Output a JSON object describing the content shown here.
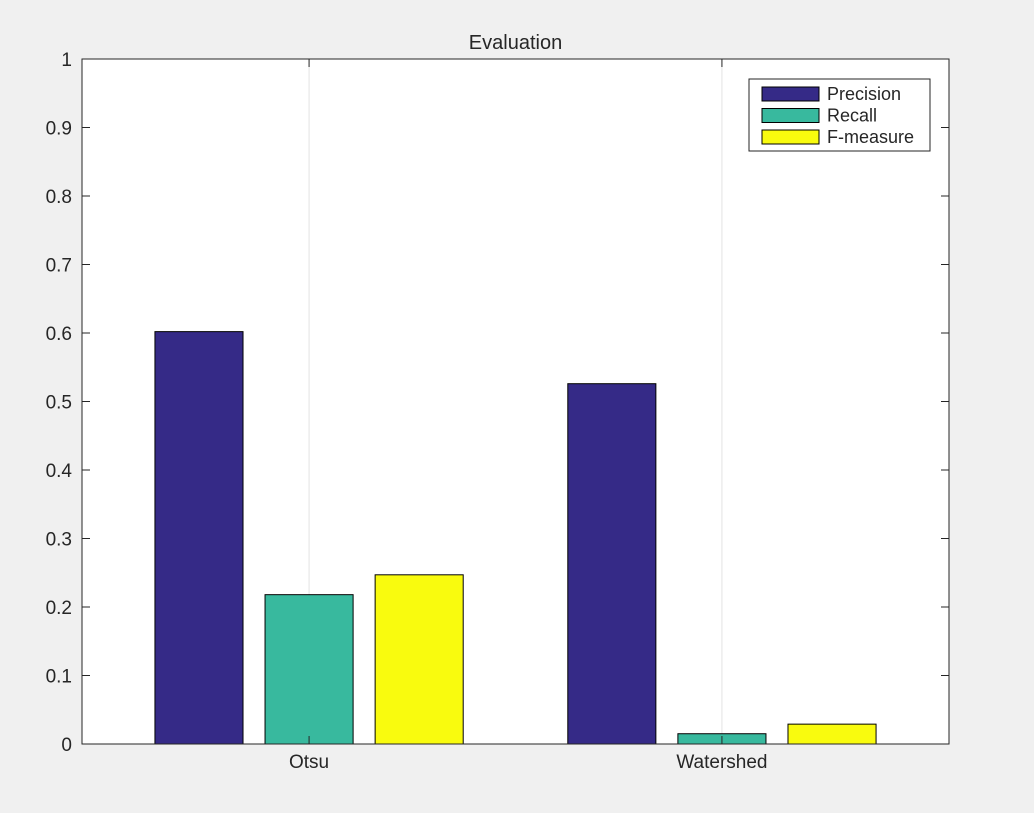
{
  "chart_data": {
    "type": "bar",
    "title": "Evaluation",
    "xlabel": "",
    "ylabel": "",
    "categories": [
      "Otsu",
      "Watershed"
    ],
    "series": [
      {
        "name": "Precision",
        "values": [
          0.602,
          0.526
        ],
        "color": "#352a87"
      },
      {
        "name": "Recall",
        "values": [
          0.218,
          0.015
        ],
        "color": "#38b99e"
      },
      {
        "name": "F-measure",
        "values": [
          0.247,
          0.029
        ],
        "color": "#f9fb0e"
      }
    ],
    "ylim": [
      0,
      1
    ],
    "yticks": [
      "0",
      "0.1",
      "0.2",
      "0.3",
      "0.4",
      "0.5",
      "0.6",
      "0.7",
      "0.8",
      "0.9",
      "1"
    ],
    "grid": "x-only",
    "legend_position": "top-right",
    "background": "#f0f0f0",
    "axes_background": "#ffffff"
  }
}
